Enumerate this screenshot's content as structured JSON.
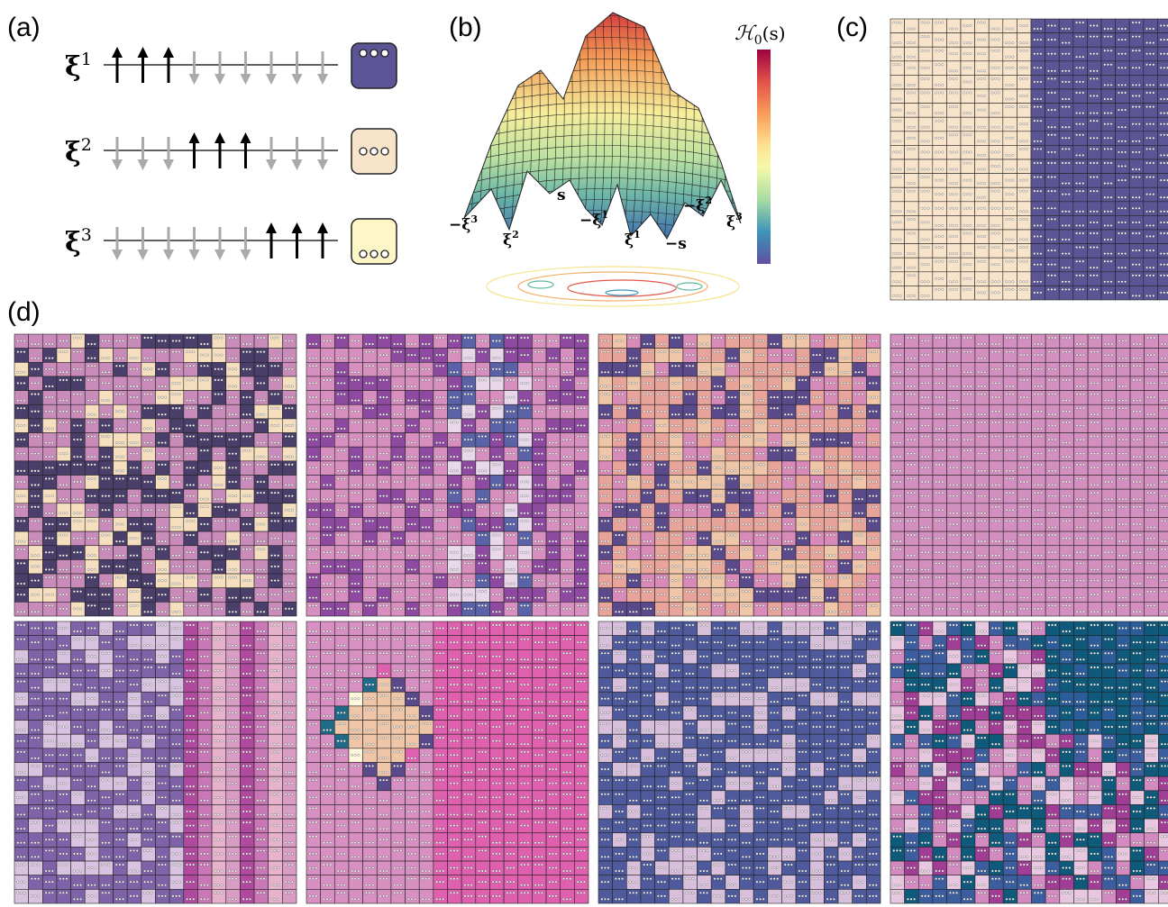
{
  "panels": {
    "a": {
      "label": "(a)",
      "patterns": [
        {
          "symbol": "ξ",
          "index": "1"
        },
        {
          "symbol": "ξ",
          "index": "2"
        },
        {
          "symbol": "ξ",
          "index": "3"
        }
      ]
    },
    "b": {
      "label": "(b)",
      "colorbar": {
        "symbol": "ℋ",
        "subscript": "0",
        "argument": "(s)"
      },
      "minima": [
        {
          "text": "−ξ",
          "sup": "3"
        },
        {
          "text": "ξ",
          "sup": "2"
        },
        {
          "text": "s"
        },
        {
          "text": "−ξ",
          "sup": "1"
        },
        {
          "text": "ξ",
          "sup": "1"
        },
        {
          "text": "−s"
        },
        {
          "text": "−ξ",
          "sup": "2"
        },
        {
          "text": "ξ",
          "sup": "3"
        }
      ]
    },
    "c": {
      "label": "(c)"
    },
    "d": {
      "label": "(d)"
    }
  }
}
